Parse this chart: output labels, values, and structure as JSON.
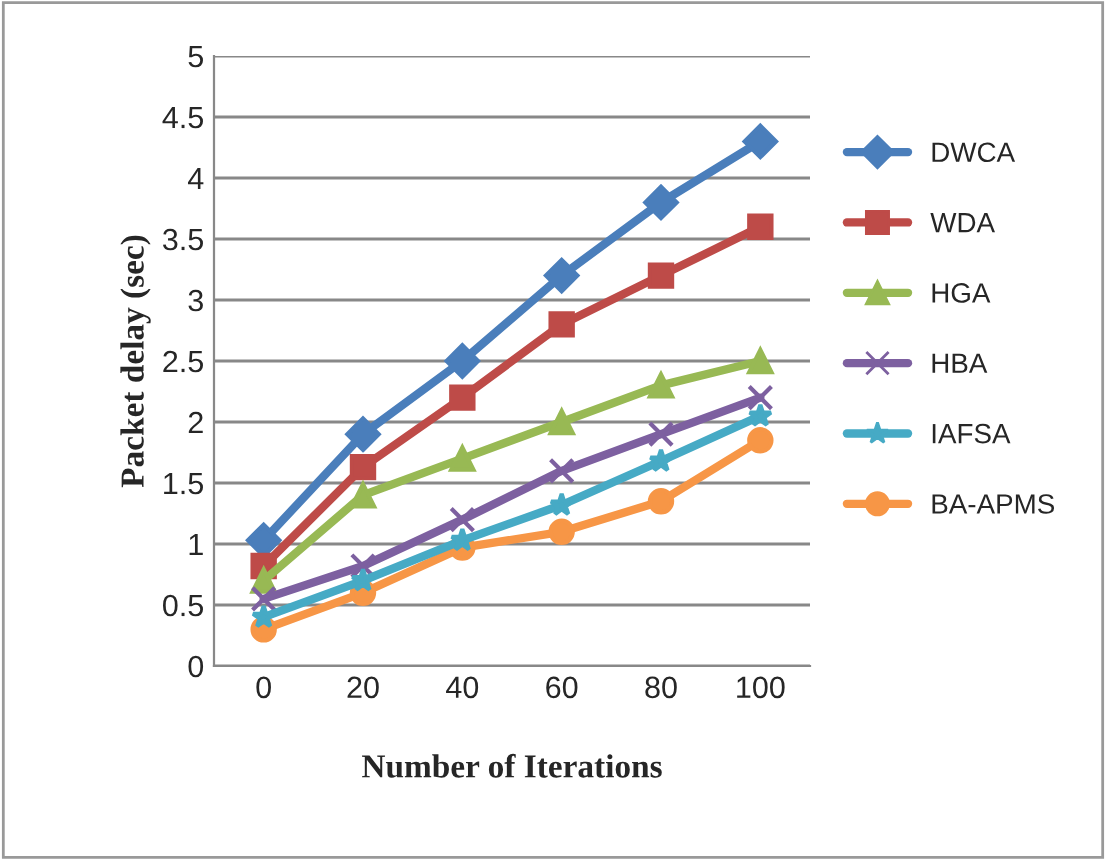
{
  "chart_data": {
    "type": "line",
    "xlabel": "Number of Iterations",
    "ylabel": "Packet delay (sec)",
    "categories": [
      "0",
      "20",
      "40",
      "60",
      "80",
      "100"
    ],
    "series": [
      {
        "name": "DWCA",
        "color": "#4a7ebb",
        "marker": "diamond",
        "values": [
          1.03,
          1.9,
          2.5,
          3.2,
          3.8,
          4.3
        ]
      },
      {
        "name": "WDA",
        "color": "#be4b48",
        "marker": "square",
        "values": [
          0.82,
          1.63,
          2.2,
          2.8,
          3.2,
          3.6
        ]
      },
      {
        "name": "HGA",
        "color": "#98b954",
        "marker": "triangle",
        "values": [
          0.7,
          1.4,
          1.7,
          2.0,
          2.3,
          2.5
        ]
      },
      {
        "name": "HBA",
        "color": "#7d60a0",
        "marker": "cross",
        "values": [
          0.55,
          0.82,
          1.2,
          1.6,
          1.9,
          2.2
        ]
      },
      {
        "name": "IAFSA",
        "color": "#46aac5",
        "marker": "star",
        "values": [
          0.4,
          0.7,
          1.03,
          1.32,
          1.68,
          2.05
        ]
      },
      {
        "name": "BA-APMS",
        "color": "#f79646",
        "marker": "circle",
        "values": [
          0.3,
          0.6,
          0.97,
          1.1,
          1.35,
          1.85
        ]
      }
    ],
    "ylim": [
      0,
      5
    ],
    "yticks": [
      0,
      0.5,
      1,
      1.5,
      2,
      2.5,
      3,
      3.5,
      4,
      4.5,
      5
    ],
    "grid": "y",
    "legend": "right"
  }
}
